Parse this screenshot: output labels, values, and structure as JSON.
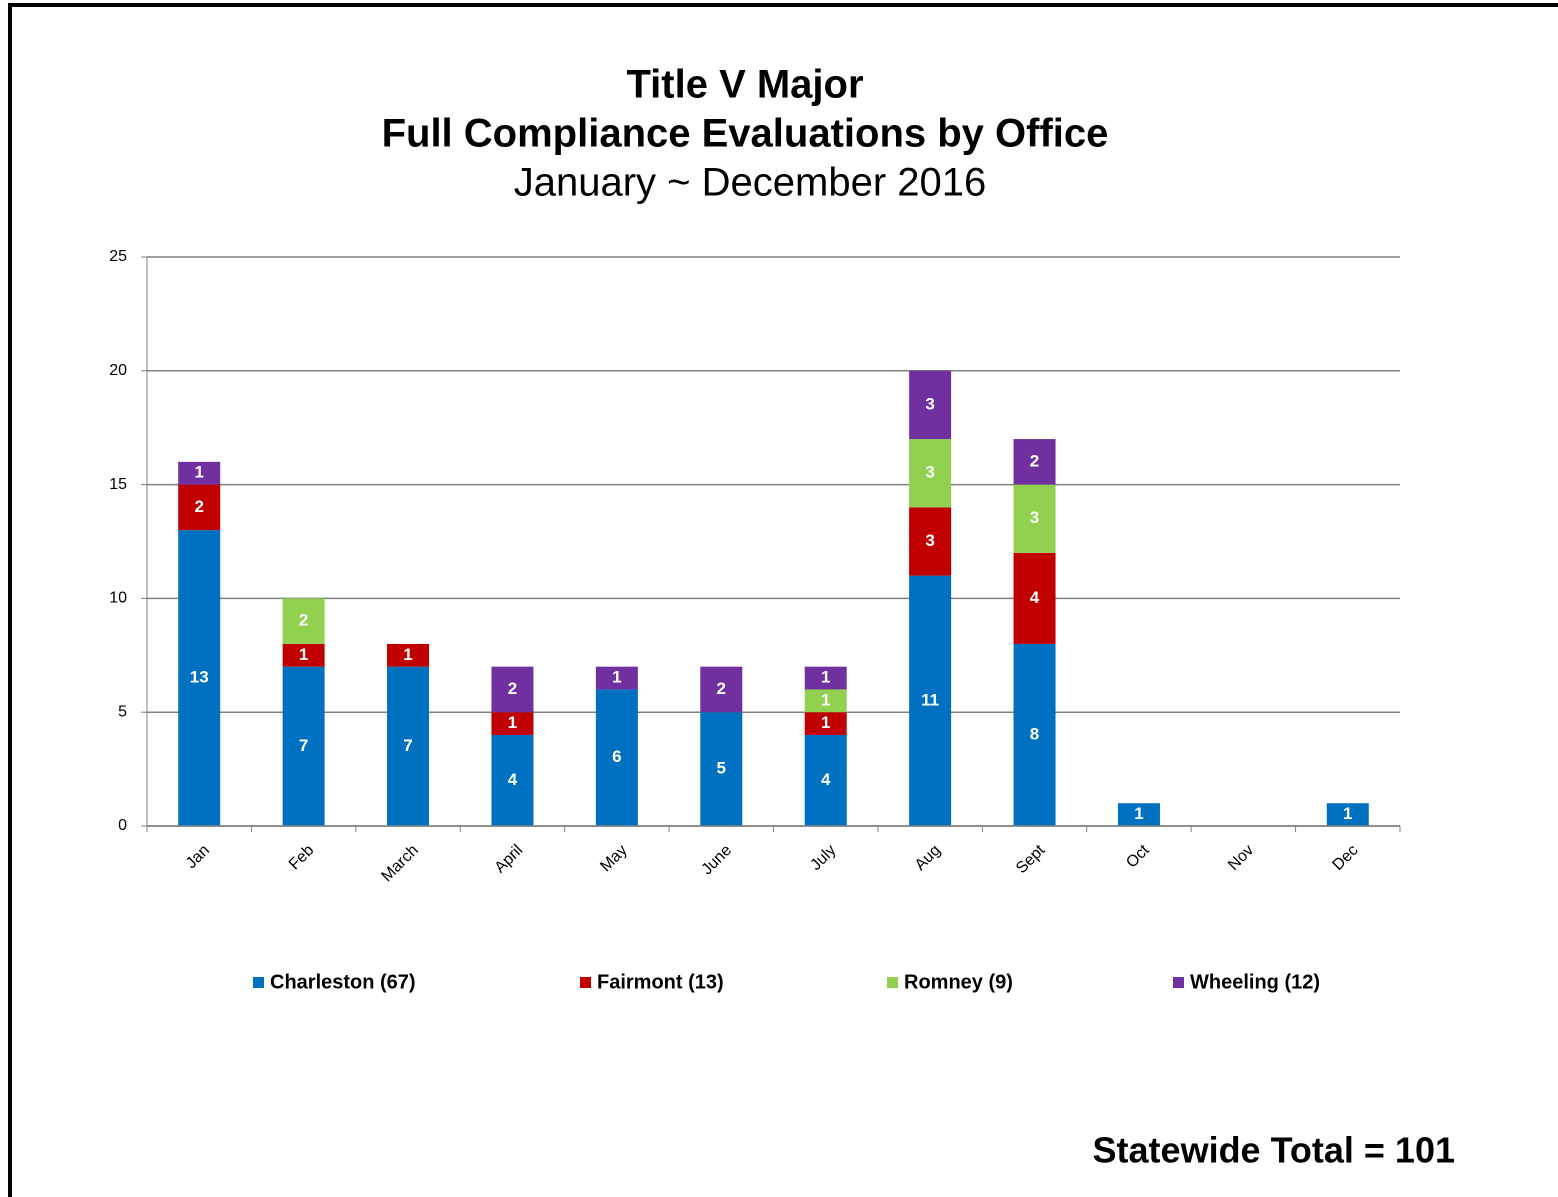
{
  "chart_data": {
    "type": "stacked_bar",
    "title": [
      "Title V Major",
      "Full Compliance Evaluations by Office"
    ],
    "subtitle": "January ~ December 2016",
    "annotation": "Statewide Total = 101",
    "categories": [
      "Jan",
      "Feb",
      "March",
      "April",
      "May",
      "June",
      "July",
      "Aug",
      "Sept",
      "Oct",
      "Nov",
      "Dec"
    ],
    "series": [
      {
        "name": "Charleston (67)",
        "color": "#0070c0",
        "values": [
          13,
          7,
          7,
          4,
          6,
          5,
          4,
          11,
          8,
          1,
          null,
          1
        ]
      },
      {
        "name": "Fairmont (13)",
        "color": "#c00000",
        "values": [
          2,
          1,
          1,
          1,
          null,
          null,
          1,
          3,
          4,
          null,
          null,
          null
        ]
      },
      {
        "name": "Romney (9)",
        "color": "#92d050",
        "values": [
          null,
          2,
          null,
          null,
          null,
          null,
          1,
          3,
          3,
          null,
          null,
          null
        ]
      },
      {
        "name": "Wheeling (12)",
        "color": "#7030a0",
        "values": [
          1,
          null,
          null,
          2,
          1,
          2,
          1,
          3,
          2,
          null,
          null,
          null
        ]
      }
    ],
    "ylim": [
      0,
      25
    ],
    "yticks": [
      0,
      5,
      10,
      15,
      20,
      25
    ],
    "grid": true,
    "legend": "bottom"
  }
}
